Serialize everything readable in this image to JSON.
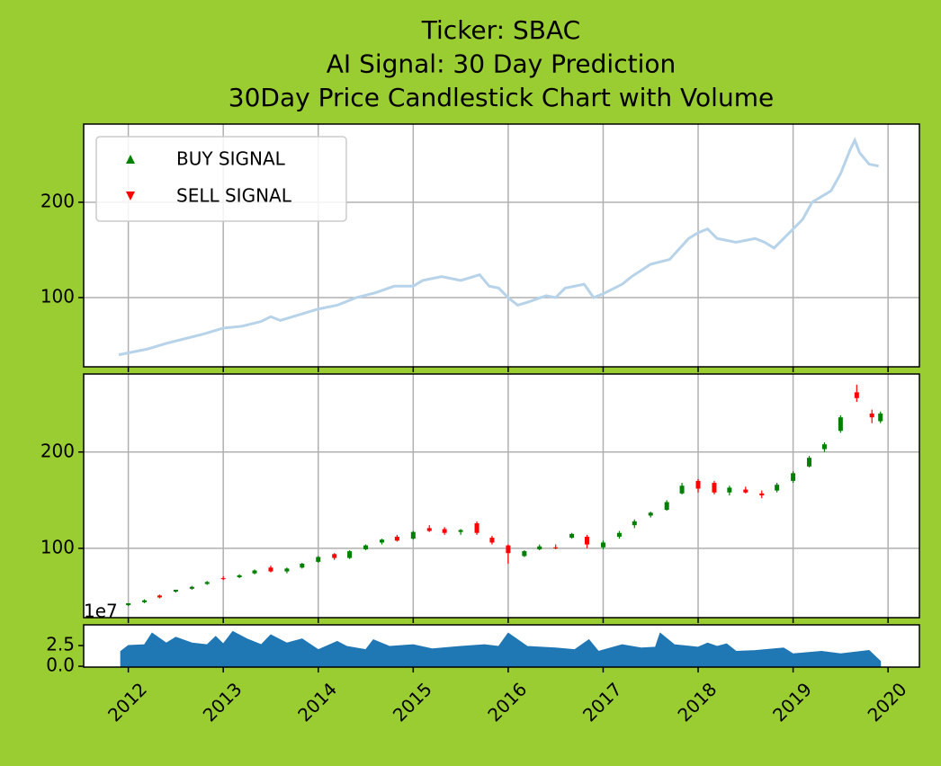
{
  "chart_data": [
    {
      "type": "line",
      "title": [
        "Ticker: SBAC",
        "AI Signal: 30 Day Prediction",
        "30Day Price Candlestick Chart with Volume"
      ],
      "x": [
        2011.9,
        2012.0,
        2012.2,
        2012.4,
        2012.6,
        2012.8,
        2013.0,
        2013.2,
        2013.4,
        2013.5,
        2013.6,
        2013.8,
        2014.0,
        2014.2,
        2014.3,
        2014.4,
        2014.6,
        2014.8,
        2015.0,
        2015.1,
        2015.3,
        2015.5,
        2015.7,
        2015.8,
        2015.9,
        2016.0,
        2016.1,
        2016.2,
        2016.4,
        2016.5,
        2016.6,
        2016.8,
        2016.9,
        2017.0,
        2017.2,
        2017.3,
        2017.5,
        2017.7,
        2017.9,
        2018.0,
        2018.1,
        2018.2,
        2018.4,
        2018.6,
        2018.7,
        2018.8,
        2018.9,
        2019.0,
        2019.1,
        2019.2,
        2019.3,
        2019.4,
        2019.5,
        2019.6,
        2019.65,
        2019.7,
        2019.8,
        2019.9
      ],
      "values": [
        40,
        42,
        46,
        52,
        57,
        62,
        68,
        70,
        75,
        80,
        76,
        82,
        88,
        92,
        96,
        100,
        105,
        112,
        112,
        118,
        122,
        118,
        124,
        112,
        110,
        100,
        92,
        95,
        102,
        100,
        110,
        114,
        100,
        104,
        114,
        122,
        135,
        140,
        162,
        168,
        172,
        162,
        158,
        162,
        158,
        152,
        162,
        172,
        182,
        200,
        206,
        212,
        230,
        255,
        265,
        252,
        240,
        238
      ],
      "color": "#b7d3ea",
      "xlim": [
        2011.53,
        2020.33
      ],
      "xticks": [
        2012,
        2013,
        2014,
        2015,
        2016,
        2017,
        2018,
        2019,
        2020
      ],
      "ylim": [
        27.4,
        282
      ],
      "yticks": [
        100,
        200
      ],
      "grid": true,
      "show_xtick_labels": false,
      "legend": [
        {
          "name": "BUY SIGNAL",
          "color": "green",
          "marker": "triangle-up"
        },
        {
          "name": "SELL SIGNAL",
          "color": "red",
          "marker": "triangle-down"
        }
      ],
      "legend_loc": "upper left"
    },
    {
      "type": "candlestick",
      "x": [
        2012.0,
        2012.17,
        2012.33,
        2012.5,
        2012.67,
        2012.83,
        2013.0,
        2013.17,
        2013.33,
        2013.5,
        2013.67,
        2013.83,
        2014.0,
        2014.17,
        2014.33,
        2014.5,
        2014.67,
        2014.83,
        2015.0,
        2015.17,
        2015.33,
        2015.5,
        2015.67,
        2015.83,
        2016.0,
        2016.17,
        2016.33,
        2016.5,
        2016.67,
        2016.83,
        2017.0,
        2017.17,
        2017.33,
        2017.5,
        2017.67,
        2017.83,
        2018.0,
        2018.17,
        2018.33,
        2018.5,
        2018.67,
        2018.83,
        2019.0,
        2019.17,
        2019.33,
        2019.5,
        2019.67,
        2019.83,
        2019.92
      ],
      "open": [
        41,
        44,
        51,
        55,
        58,
        63,
        69,
        70,
        74,
        80,
        76,
        80,
        86,
        94,
        90,
        99,
        106,
        112,
        110,
        121,
        120,
        117,
        126,
        111,
        103,
        92,
        99,
        101,
        111,
        112,
        101,
        112,
        124,
        134,
        140,
        157,
        170,
        168,
        158,
        161,
        157,
        160,
        170,
        185,
        203,
        222,
        262,
        240,
        232
      ],
      "high": [
        43,
        47,
        52,
        57,
        61,
        66,
        71,
        73,
        78,
        82,
        80,
        85,
        92,
        95,
        98,
        104,
        110,
        114,
        118,
        124,
        122,
        120,
        128,
        113,
        104,
        98,
        104,
        104,
        116,
        114,
        108,
        118,
        130,
        138,
        150,
        168,
        172,
        170,
        165,
        164,
        160,
        168,
        180,
        196,
        210,
        238,
        270,
        244,
        242
      ],
      "low": [
        40,
        43,
        48,
        54,
        57,
        62,
        67,
        69,
        73,
        75,
        74,
        79,
        85,
        88,
        89,
        98,
        104,
        107,
        109,
        117,
        114,
        114,
        114,
        104,
        84,
        91,
        98,
        99,
        110,
        100,
        99,
        110,
        121,
        132,
        139,
        156,
        158,
        156,
        155,
        157,
        152,
        158,
        168,
        184,
        200,
        220,
        252,
        230,
        230
      ],
      "close": [
        43,
        46,
        49,
        57,
        60,
        65,
        68,
        72,
        77,
        76,
        79,
        84,
        91,
        90,
        97,
        103,
        109,
        108,
        117,
        118,
        116,
        119,
        116,
        106,
        95,
        97,
        102,
        100,
        115,
        104,
        106,
        116,
        128,
        137,
        148,
        165,
        162,
        158,
        163,
        158,
        155,
        166,
        178,
        194,
        208,
        236,
        256,
        236,
        240
      ],
      "up_color": "green",
      "down_color": "red",
      "xlim": [
        2011.53,
        2020.33
      ],
      "xticks": [
        2012,
        2013,
        2014,
        2015,
        2016,
        2017,
        2018,
        2019,
        2020
      ],
      "ylim": [
        28,
        281
      ],
      "yticks": [
        100,
        200
      ],
      "grid": true,
      "show_xtick_labels": false
    },
    {
      "type": "area",
      "x": [
        2011.92,
        2012.0,
        2012.17,
        2012.25,
        2012.4,
        2012.5,
        2012.67,
        2012.83,
        2012.92,
        2013.0,
        2013.1,
        2013.25,
        2013.4,
        2013.5,
        2013.67,
        2013.83,
        2014.0,
        2014.2,
        2014.3,
        2014.5,
        2014.58,
        2014.75,
        2015.0,
        2015.2,
        2015.5,
        2015.75,
        2015.9,
        2016.0,
        2016.2,
        2016.5,
        2016.7,
        2016.85,
        2016.95,
        2017.2,
        2017.4,
        2017.55,
        2017.6,
        2017.75,
        2018.0,
        2018.1,
        2018.2,
        2018.3,
        2018.4,
        2018.6,
        2018.9,
        2019.0,
        2019.3,
        2019.5,
        2019.8,
        2019.92
      ],
      "values": [
        1.8,
        2.5,
        2.6,
        4.0,
        2.8,
        3.5,
        2.8,
        2.6,
        3.6,
        2.7,
        4.2,
        3.3,
        2.6,
        3.8,
        2.8,
        3.3,
        2.0,
        3.0,
        2.4,
        2.0,
        3.2,
        2.4,
        2.6,
        2.1,
        2.4,
        2.6,
        2.4,
        4.0,
        2.4,
        2.2,
        2.0,
        3.2,
        1.8,
        2.6,
        2.2,
        2.3,
        4.0,
        2.6,
        2.3,
        2.8,
        2.4,
        2.7,
        1.8,
        1.9,
        2.2,
        1.5,
        1.8,
        1.5,
        1.9,
        0.6
      ],
      "color": "#1f77b4",
      "y_offset_text": "1e7",
      "xlim": [
        2011.53,
        2020.33
      ],
      "xticks": [
        2012,
        2013,
        2014,
        2015,
        2016,
        2017,
        2018,
        2019,
        2020
      ],
      "ylim": [
        -0.1,
        5.0
      ],
      "yticks": [
        {
          "value": 0,
          "label": "0.0"
        },
        {
          "value": 2.5,
          "label": "2.5"
        }
      ],
      "grid": false,
      "show_xtick_labels": true,
      "xtick_rotation": 45
    }
  ]
}
